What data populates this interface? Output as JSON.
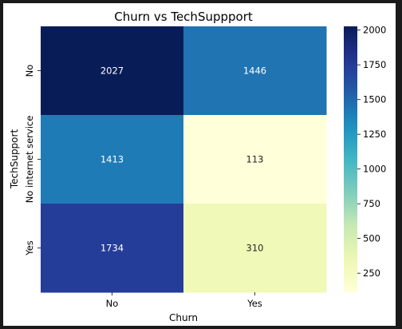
{
  "chart_data": {
    "type": "heatmap",
    "title": "Churn vs TechSuppport",
    "xlabel": "Churn",
    "ylabel": "TechSupport",
    "x_categories": [
      "No",
      "Yes"
    ],
    "y_categories": [
      "No",
      "No internet service",
      "Yes"
    ],
    "values": [
      [
        2027,
        1446
      ],
      [
        1413,
        113
      ],
      [
        1734,
        310
      ]
    ],
    "value_labels": [
      [
        "2027",
        "1446"
      ],
      [
        "1413",
        "113"
      ],
      [
        "1734",
        "310"
      ]
    ],
    "colormap": "YlGnBu",
    "vmin": 113,
    "vmax": 2027,
    "colorbar_ticks": [
      250,
      500,
      750,
      1000,
      1250,
      1500,
      1750,
      2000
    ],
    "colorbar_tick_labels": [
      "250",
      "500",
      "750",
      "1000",
      "1250",
      "1500",
      "1750",
      "2000"
    ],
    "colorbar_position": "right",
    "grid": false
  }
}
